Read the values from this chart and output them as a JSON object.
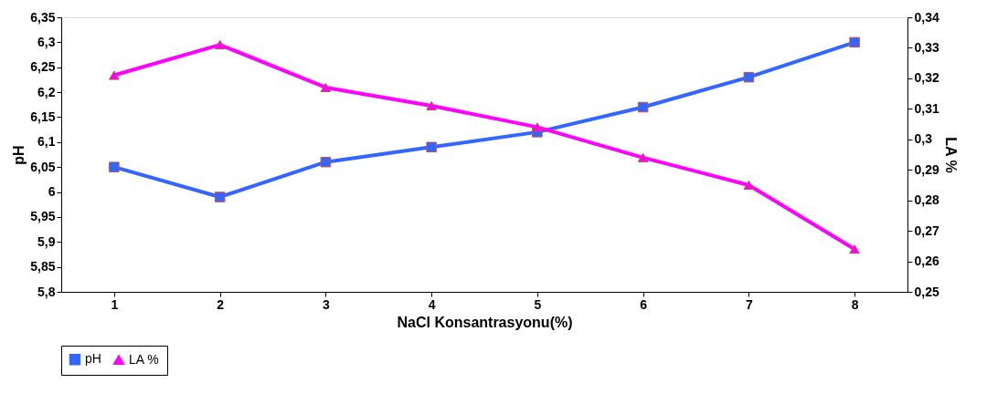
{
  "chart_data": {
    "type": "line",
    "xlabel": "NaCl Konsantrasyonu(%)",
    "ylabel": "pH",
    "y2label": "LA %",
    "categories": [
      "1",
      "2",
      "3",
      "4",
      "5",
      "6",
      "7",
      "8"
    ],
    "series": [
      {
        "name": "pH",
        "color": "#3366ff",
        "marker": "square",
        "values": [
          6.05,
          5.99,
          6.06,
          6.09,
          6.12,
          6.17,
          6.23,
          6.3
        ]
      },
      {
        "name": "LA %",
        "color": "#ff00ff",
        "marker": "triangle",
        "axis": "y2",
        "values": [
          0.321,
          0.331,
          0.317,
          0.311,
          0.304,
          0.294,
          0.285,
          0.264
        ]
      }
    ],
    "ylim": [
      5.8,
      6.35
    ],
    "yticks": [
      {
        "value": 5.8,
        "label": "5,8"
      },
      {
        "value": 5.85,
        "label": "5,85"
      },
      {
        "value": 5.9,
        "label": "5,9"
      },
      {
        "value": 5.95,
        "label": "5,95"
      },
      {
        "value": 6.0,
        "label": "6"
      },
      {
        "value": 6.05,
        "label": "6,05"
      },
      {
        "value": 6.1,
        "label": "6,1"
      },
      {
        "value": 6.15,
        "label": "6,15"
      },
      {
        "value": 6.2,
        "label": "6,2"
      },
      {
        "value": 6.25,
        "label": "6,25"
      },
      {
        "value": 6.3,
        "label": "6,3"
      },
      {
        "value": 6.35,
        "label": "6,35"
      }
    ],
    "y2lim": [
      0.25,
      0.34
    ],
    "y2ticks": [
      {
        "value": 0.25,
        "label": "0,25"
      },
      {
        "value": 0.26,
        "label": "0,26"
      },
      {
        "value": 0.27,
        "label": "0,27"
      },
      {
        "value": 0.28,
        "label": "0,28"
      },
      {
        "value": 0.29,
        "label": "0,29"
      },
      {
        "value": 0.3,
        "label": "0,3"
      },
      {
        "value": 0.31,
        "label": "0,31"
      },
      {
        "value": 0.32,
        "label": "0,32"
      },
      {
        "value": 0.33,
        "label": "0,33"
      },
      {
        "value": 0.34,
        "label": "0,34"
      }
    ],
    "grid": false,
    "legend": "bottom",
    "line_style": "solid"
  }
}
